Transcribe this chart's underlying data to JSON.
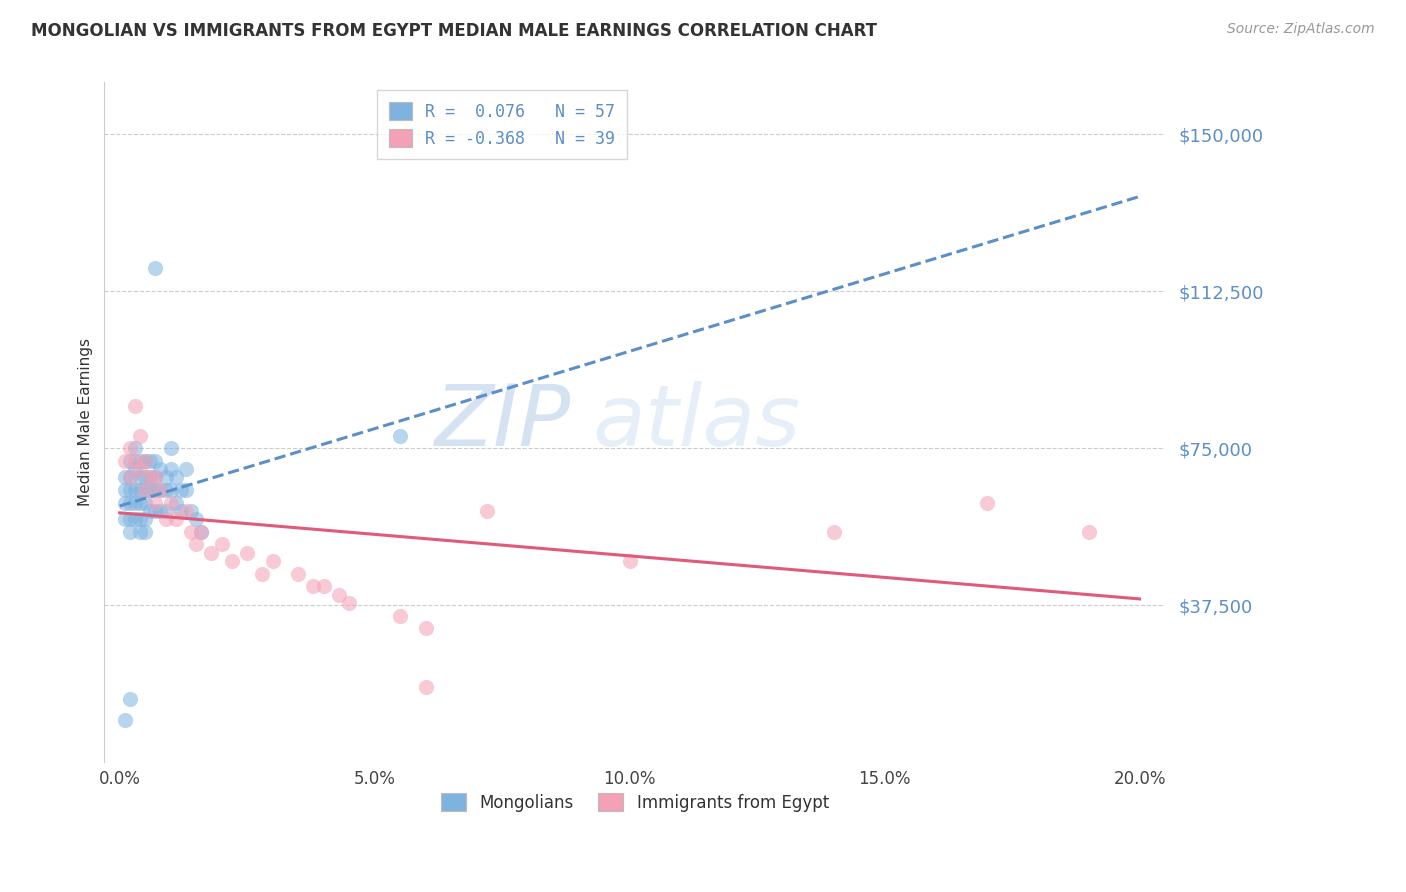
{
  "title": "MONGOLIAN VS IMMIGRANTS FROM EGYPT MEDIAN MALE EARNINGS CORRELATION CHART",
  "source": "Source: ZipAtlas.com",
  "ylabel": "Median Male Earnings",
  "xlabel_ticks": [
    "0.0%",
    "5.0%",
    "10.0%",
    "15.0%",
    "20.0%"
  ],
  "xlabel_vals": [
    0.0,
    0.05,
    0.1,
    0.15,
    0.2
  ],
  "ytick_labels": [
    "$37,500",
    "$75,000",
    "$112,500",
    "$150,000"
  ],
  "ytick_vals": [
    37500,
    75000,
    112500,
    150000
  ],
  "ylim": [
    0,
    162500
  ],
  "xlim": [
    -0.003,
    0.205
  ],
  "color_blue": "#7eb3e0",
  "color_pink": "#f4a0b5",
  "trend_blue": "#5b8fc9",
  "trend_pink": "#e05a7a",
  "watermark_zip": "ZIP",
  "watermark_atlas": "atlas",
  "mongolian_x": [
    0.001,
    0.001,
    0.001,
    0.001,
    0.002,
    0.002,
    0.002,
    0.002,
    0.002,
    0.002,
    0.003,
    0.003,
    0.003,
    0.003,
    0.003,
    0.004,
    0.004,
    0.004,
    0.004,
    0.004,
    0.004,
    0.005,
    0.005,
    0.005,
    0.005,
    0.005,
    0.005,
    0.006,
    0.006,
    0.006,
    0.006,
    0.007,
    0.007,
    0.007,
    0.007,
    0.008,
    0.008,
    0.008,
    0.009,
    0.009,
    0.009,
    0.01,
    0.01,
    0.01,
    0.011,
    0.011,
    0.012,
    0.012,
    0.013,
    0.013,
    0.014,
    0.015,
    0.016,
    0.001,
    0.002,
    0.055,
    0.007
  ],
  "mongolian_y": [
    68000,
    65000,
    62000,
    58000,
    72000,
    68000,
    65000,
    62000,
    58000,
    55000,
    75000,
    70000,
    65000,
    62000,
    58000,
    72000,
    68000,
    65000,
    62000,
    58000,
    55000,
    72000,
    68000,
    65000,
    62000,
    58000,
    55000,
    72000,
    68000,
    65000,
    60000,
    72000,
    68000,
    65000,
    60000,
    70000,
    65000,
    60000,
    68000,
    65000,
    60000,
    75000,
    70000,
    65000,
    68000,
    62000,
    65000,
    60000,
    70000,
    65000,
    60000,
    58000,
    55000,
    10000,
    15000,
    78000,
    118000
  ],
  "egypt_x": [
    0.001,
    0.002,
    0.002,
    0.003,
    0.003,
    0.004,
    0.004,
    0.005,
    0.005,
    0.006,
    0.007,
    0.007,
    0.008,
    0.009,
    0.01,
    0.011,
    0.013,
    0.014,
    0.015,
    0.016,
    0.018,
    0.02,
    0.022,
    0.025,
    0.028,
    0.03,
    0.035,
    0.038,
    0.04,
    0.043,
    0.045,
    0.055,
    0.06,
    0.072,
    0.1,
    0.14,
    0.17,
    0.19,
    0.06
  ],
  "egypt_y": [
    72000,
    75000,
    68000,
    85000,
    72000,
    78000,
    70000,
    72000,
    65000,
    68000,
    68000,
    62000,
    65000,
    58000,
    62000,
    58000,
    60000,
    55000,
    52000,
    55000,
    50000,
    52000,
    48000,
    50000,
    45000,
    48000,
    45000,
    42000,
    42000,
    40000,
    38000,
    35000,
    32000,
    60000,
    48000,
    55000,
    62000,
    55000,
    18000
  ]
}
